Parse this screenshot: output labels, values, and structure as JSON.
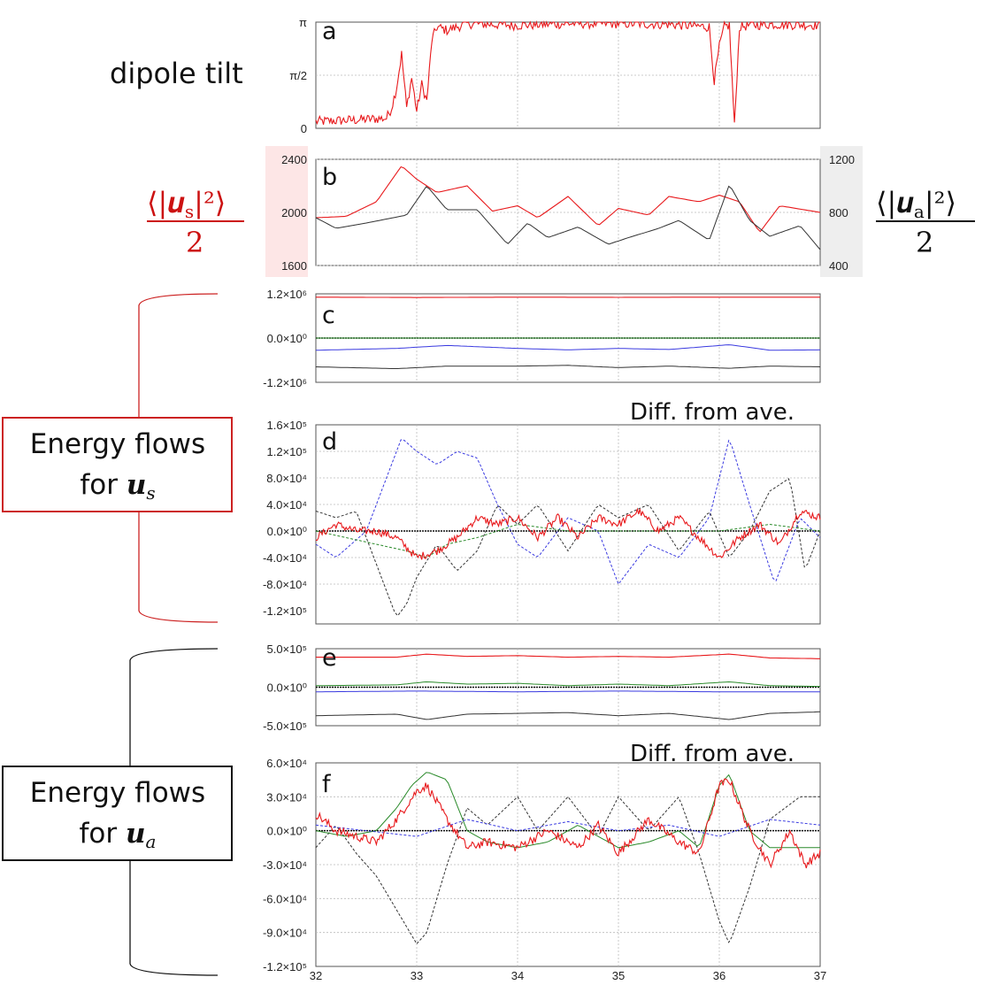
{
  "labels": {
    "dipole_tilt": "dipole tilt",
    "us_num": "⟨|𝒖",
    "us_sub": "s",
    "us_tail": "|²⟩",
    "ua_num": "⟨|𝒖",
    "ua_sub": "a",
    "ua_tail": "|²⟩",
    "den_left": "2",
    "den_right": "2",
    "diff_d": "Diff. from ave.",
    "diff_f": "Diff. from ave.",
    "box1_line1": "Energy flows",
    "box1_line2": "for ",
    "box1_sym": "𝒖",
    "box1_sub": "s",
    "box2_line1": "Energy flows",
    "box2_line2": "for ",
    "box2_sym": "𝒖",
    "box2_sub": "a"
  },
  "colors": {
    "red": "#e8191c",
    "black": "#333333",
    "blue": "#3a3ae0",
    "green": "#2a8a2a",
    "box1": "#cc2222",
    "box2": "#111111"
  },
  "chart_data": [
    {
      "panel": "a",
      "type": "line",
      "ylim": [
        0,
        3.14159
      ],
      "yticks": [
        {
          "v": 0,
          "label": "0"
        },
        {
          "v": 1.5708,
          "label": "π/2"
        },
        {
          "v": 3.14159,
          "label": "π"
        }
      ],
      "series": [
        {
          "color": "red",
          "x": [
            32.0,
            32.4,
            32.7,
            32.75,
            32.8,
            32.85,
            32.9,
            32.95,
            33.0,
            33.05,
            33.1,
            33.15,
            33.2,
            33.3,
            33.5,
            34.0,
            34.5,
            35.0,
            35.5,
            35.9,
            35.95,
            36.0,
            36.05,
            36.1,
            36.15,
            36.2,
            36.3,
            36.5,
            37.0
          ],
          "y": [
            0.2,
            0.25,
            0.3,
            0.6,
            1.2,
            2.2,
            0.6,
            1.5,
            0.5,
            1.3,
            0.8,
            2.6,
            3.0,
            2.9,
            3.1,
            3.05,
            3.1,
            3.1,
            3.08,
            3.0,
            1.4,
            2.4,
            3.0,
            3.05,
            0.05,
            3.0,
            3.05,
            3.08,
            3.06
          ],
          "noise": 0.15
        }
      ]
    },
    {
      "panel": "b",
      "type": "line",
      "dual_axis": true,
      "ylim": [
        1600,
        2400
      ],
      "y2lim": [
        400,
        1200
      ],
      "yticks": [
        1600,
        2000,
        2400
      ],
      "y2ticks": [
        400,
        800,
        1200
      ],
      "series": [
        {
          "color": "red",
          "axis": "left",
          "x": [
            32.0,
            32.3,
            32.6,
            32.85,
            33.0,
            33.2,
            33.5,
            33.75,
            34.0,
            34.2,
            34.5,
            34.8,
            35.0,
            35.3,
            35.5,
            35.8,
            36.0,
            36.2,
            36.4,
            36.6,
            37.0
          ],
          "y": [
            1960,
            1970,
            2080,
            2350,
            2250,
            2150,
            2200,
            2010,
            2050,
            1960,
            2120,
            1900,
            2030,
            1980,
            2120,
            2080,
            2130,
            2080,
            1850,
            2050,
            2000
          ]
        },
        {
          "color": "black",
          "axis": "right",
          "x": [
            32.0,
            32.2,
            32.5,
            32.9,
            33.1,
            33.3,
            33.6,
            33.9,
            34.1,
            34.3,
            34.6,
            34.9,
            35.1,
            35.4,
            35.6,
            35.9,
            36.1,
            36.3,
            36.5,
            36.8,
            37.0
          ],
          "y": [
            760,
            680,
            720,
            780,
            1000,
            820,
            820,
            560,
            720,
            610,
            690,
            560,
            610,
            680,
            740,
            590,
            1010,
            740,
            620,
            700,
            520
          ]
        }
      ]
    },
    {
      "panel": "c",
      "type": "line",
      "ylim": [
        -1200000,
        1200000
      ],
      "yticks": [
        {
          "v": 1200000,
          "label": "1.2×10⁶"
        },
        {
          "v": 0,
          "label": "0.0×10⁰"
        },
        {
          "v": -1200000,
          "label": "-1.2×10⁶"
        }
      ],
      "series": [
        {
          "color": "red",
          "x": [
            32,
            33,
            34,
            35,
            36,
            37
          ],
          "y": [
            1110000,
            1100000,
            1110000,
            1105000,
            1110000,
            1110000
          ]
        },
        {
          "color": "green",
          "x": [
            32,
            33,
            34,
            35,
            36,
            37
          ],
          "y": [
            0,
            0,
            0,
            0,
            0,
            0
          ]
        },
        {
          "color": "blue",
          "x": [
            32,
            32.8,
            33.3,
            34,
            34.5,
            35,
            35.5,
            36.1,
            36.5,
            37
          ],
          "y": [
            -330000,
            -280000,
            -200000,
            -280000,
            -320000,
            -280000,
            -310000,
            -180000,
            -330000,
            -320000
          ]
        },
        {
          "color": "black",
          "x": [
            32,
            32.8,
            33.3,
            34,
            34.5,
            35,
            35.5,
            36.1,
            36.5,
            37
          ],
          "y": [
            -780000,
            -830000,
            -760000,
            -760000,
            -740000,
            -800000,
            -760000,
            -820000,
            -760000,
            -780000
          ]
        }
      ]
    },
    {
      "panel": "d",
      "type": "line",
      "ylim": [
        -140000,
        160000
      ],
      "yticks": [
        {
          "v": 160000,
          "label": "1.6×10⁵"
        },
        {
          "v": 120000,
          "label": "1.2×10⁵"
        },
        {
          "v": 80000,
          "label": "8.0×10⁴"
        },
        {
          "v": 40000,
          "label": "4.0×10⁴"
        },
        {
          "v": 0,
          "label": "0.0×10⁰"
        },
        {
          "v": -40000,
          "label": "-4.0×10⁴"
        },
        {
          "v": -80000,
          "label": "-8.0×10⁴"
        },
        {
          "v": -120000,
          "label": "-1.2×10⁵"
        }
      ],
      "series": [
        {
          "color": "blue",
          "dashed": true,
          "x": [
            32,
            32.2,
            32.5,
            32.85,
            33.0,
            33.2,
            33.4,
            33.6,
            33.8,
            34.0,
            34.2,
            34.5,
            34.8,
            35.0,
            35.3,
            35.6,
            35.9,
            36.1,
            36.3,
            36.55,
            36.8,
            37.0
          ],
          "y": [
            -20000,
            -40000,
            0,
            140000,
            120000,
            100000,
            120000,
            110000,
            40000,
            -20000,
            -40000,
            20000,
            0,
            -80000,
            -20000,
            -40000,
            20000,
            140000,
            40000,
            -80000,
            20000,
            -10000
          ]
        },
        {
          "color": "black",
          "dashed": true,
          "x": [
            32,
            32.2,
            32.4,
            32.6,
            32.8,
            32.9,
            33.0,
            33.2,
            33.4,
            33.6,
            33.8,
            34.0,
            34.2,
            34.5,
            34.8,
            35.0,
            35.3,
            35.6,
            35.9,
            36.1,
            36.3,
            36.5,
            36.7,
            36.85,
            37.0
          ],
          "y": [
            30000,
            20000,
            30000,
            -50000,
            -130000,
            -110000,
            -70000,
            -20000,
            -60000,
            -30000,
            40000,
            10000,
            40000,
            -30000,
            40000,
            20000,
            40000,
            -30000,
            30000,
            -40000,
            0,
            60000,
            80000,
            -60000,
            0
          ]
        },
        {
          "color": "green",
          "dashed": true,
          "x": [
            32,
            32.3,
            32.6,
            32.9,
            33.1,
            33.3,
            33.6,
            34,
            34.5,
            35,
            35.5,
            36,
            36.5,
            37
          ],
          "y": [
            0,
            -10000,
            -20000,
            -30000,
            -40000,
            -20000,
            -10000,
            10000,
            0,
            0,
            0,
            0,
            10000,
            0
          ]
        },
        {
          "color": "red",
          "noise": 6000,
          "x": [
            32,
            32.2,
            32.4,
            32.6,
            32.8,
            33.0,
            33.2,
            33.4,
            33.6,
            33.8,
            34.0,
            34.2,
            34.4,
            34.6,
            34.8,
            35.0,
            35.2,
            35.4,
            35.6,
            35.8,
            36.0,
            36.2,
            36.4,
            36.6,
            36.8,
            37.0
          ],
          "y": [
            -10000,
            10000,
            0,
            0,
            -10000,
            -40000,
            -30000,
            -10000,
            20000,
            10000,
            20000,
            -10000,
            20000,
            -10000,
            20000,
            10000,
            30000,
            0,
            20000,
            -10000,
            -40000,
            -10000,
            10000,
            -20000,
            30000,
            20000
          ]
        }
      ]
    },
    {
      "panel": "e",
      "type": "line",
      "ylim": [
        -500000,
        500000
      ],
      "yticks": [
        {
          "v": 500000,
          "label": "5.0×10⁵"
        },
        {
          "v": 0,
          "label": "0.0×10⁰"
        },
        {
          "v": -500000,
          "label": "-5.0×10⁵"
        }
      ],
      "series": [
        {
          "color": "red",
          "x": [
            32,
            32.8,
            33.1,
            33.5,
            34,
            34.5,
            35,
            35.5,
            36.1,
            36.5,
            37
          ],
          "y": [
            390000,
            390000,
            430000,
            400000,
            410000,
            390000,
            400000,
            390000,
            430000,
            380000,
            370000
          ]
        },
        {
          "color": "green",
          "x": [
            32,
            32.8,
            33.1,
            33.5,
            34,
            34.5,
            35,
            35.5,
            36.1,
            36.5,
            37
          ],
          "y": [
            20000,
            30000,
            70000,
            40000,
            50000,
            20000,
            40000,
            20000,
            70000,
            20000,
            10000
          ]
        },
        {
          "color": "blue",
          "x": [
            32,
            33,
            34,
            35,
            36,
            37
          ],
          "y": [
            -60000,
            -50000,
            -60000,
            -50000,
            -60000,
            -60000
          ]
        },
        {
          "color": "black",
          "x": [
            32,
            32.8,
            33.1,
            33.5,
            34,
            34.5,
            35,
            35.5,
            36.1,
            36.5,
            37
          ],
          "y": [
            -370000,
            -350000,
            -420000,
            -350000,
            -340000,
            -330000,
            -370000,
            -340000,
            -420000,
            -340000,
            -320000
          ]
        }
      ]
    },
    {
      "panel": "f",
      "type": "line",
      "ylim": [
        -120000,
        60000
      ],
      "yticks": [
        {
          "v": 60000,
          "label": "6.0×10⁴"
        },
        {
          "v": 30000,
          "label": "3.0×10⁴"
        },
        {
          "v": 0,
          "label": "0.0×10⁰"
        },
        {
          "v": -30000,
          "label": "-3.0×10⁴"
        },
        {
          "v": -60000,
          "label": "-6.0×10⁴"
        },
        {
          "v": -90000,
          "label": "-9.0×10⁴"
        },
        {
          "v": -120000,
          "label": "-1.2×10⁵"
        }
      ],
      "xlim": [
        32,
        37
      ],
      "xticks": [
        32,
        33,
        34,
        35,
        36,
        37
      ],
      "series": [
        {
          "color": "black",
          "dashed": true,
          "x": [
            32,
            32.2,
            32.4,
            32.6,
            32.8,
            33.0,
            33.1,
            33.3,
            33.5,
            33.7,
            34.0,
            34.2,
            34.5,
            34.8,
            35.0,
            35.3,
            35.6,
            35.8,
            36.0,
            36.1,
            36.3,
            36.5,
            36.8,
            37.0
          ],
          "y": [
            -15000,
            5000,
            -20000,
            -40000,
            -70000,
            -100000,
            -90000,
            -30000,
            20000,
            5000,
            30000,
            0,
            30000,
            -5000,
            30000,
            0,
            30000,
            -20000,
            -80000,
            -100000,
            -50000,
            10000,
            30000,
            30000
          ]
        },
        {
          "color": "green",
          "x": [
            32,
            32.3,
            32.6,
            32.8,
            32.95,
            33.1,
            33.3,
            33.5,
            33.7,
            34.0,
            34.3,
            34.6,
            35.0,
            35.3,
            35.6,
            35.8,
            36.0,
            36.1,
            36.3,
            36.5,
            37.0
          ],
          "y": [
            0,
            -5000,
            0,
            20000,
            40000,
            52000,
            45000,
            0,
            -10000,
            -15000,
            -10000,
            5000,
            -15000,
            -10000,
            0,
            -15000,
            40000,
            50000,
            0,
            -15000,
            -15000
          ]
        },
        {
          "color": "blue",
          "dashed": true,
          "x": [
            32,
            32.5,
            33,
            33.5,
            34,
            34.5,
            35,
            35.5,
            36,
            36.5,
            37
          ],
          "y": [
            5000,
            0,
            -5000,
            10000,
            0,
            8000,
            0,
            5000,
            -5000,
            10000,
            5000
          ]
        },
        {
          "color": "red",
          "noise": 4000,
          "x": [
            32,
            32.2,
            32.4,
            32.6,
            32.8,
            33.0,
            33.1,
            33.3,
            33.5,
            33.7,
            34.0,
            34.3,
            34.6,
            34.8,
            35.0,
            35.3,
            35.6,
            35.8,
            36.0,
            36.1,
            36.3,
            36.5,
            36.7,
            36.85,
            37.0
          ],
          "y": [
            15000,
            0,
            -5000,
            -10000,
            10000,
            35000,
            40000,
            10000,
            -15000,
            -10000,
            -15000,
            0,
            -15000,
            5000,
            -20000,
            10000,
            -10000,
            -20000,
            40000,
            45000,
            0,
            -30000,
            0,
            -30000,
            -20000
          ]
        }
      ]
    }
  ]
}
